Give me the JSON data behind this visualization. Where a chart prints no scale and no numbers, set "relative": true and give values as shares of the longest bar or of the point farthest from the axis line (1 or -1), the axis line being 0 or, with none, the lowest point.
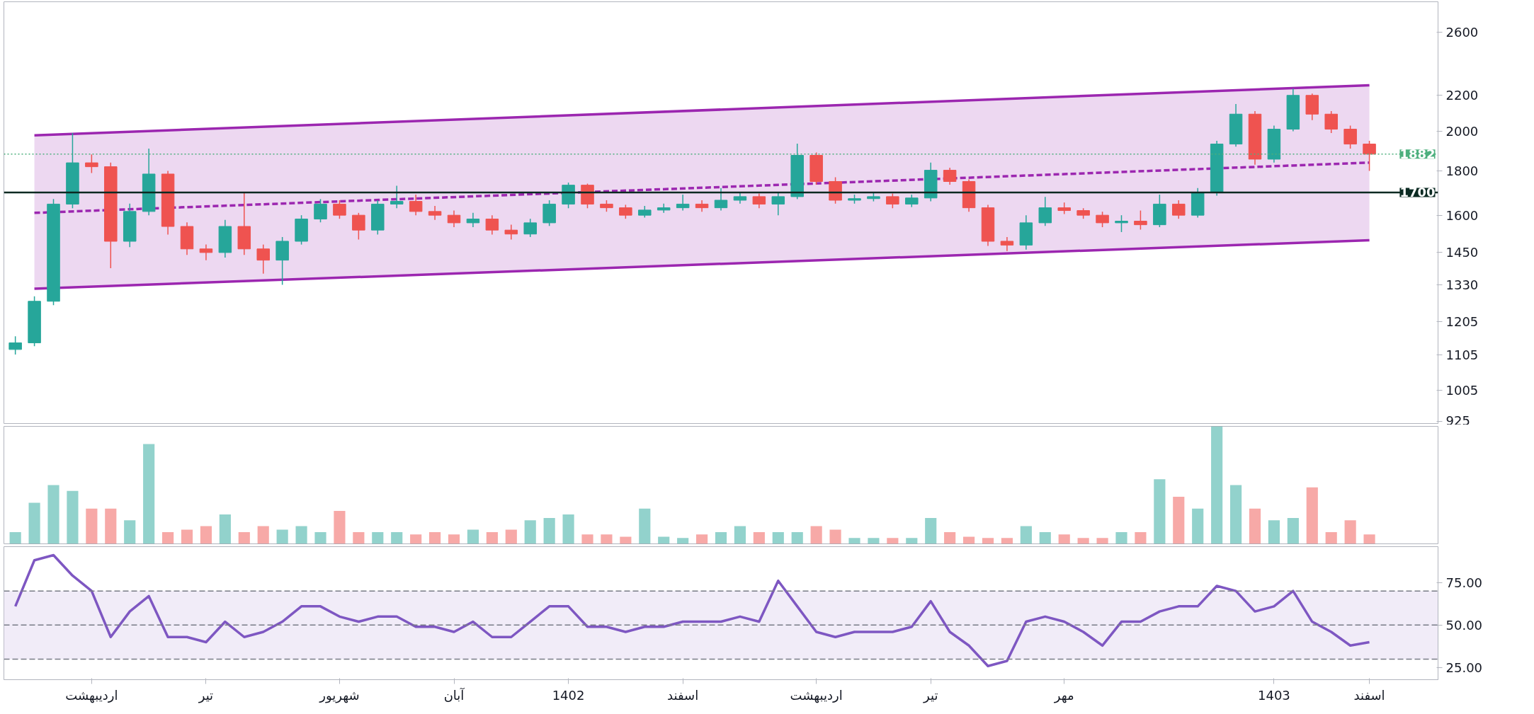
{
  "chart_data": [
    {
      "type": "candlestick",
      "categories": [
        null,
        null,
        null,
        null,
        null,
        null,
        null,
        null,
        null,
        null,
        null,
        null,
        null,
        null,
        null,
        null,
        null,
        null,
        null,
        null,
        null,
        null,
        null,
        null,
        null,
        null,
        null,
        null,
        null,
        null,
        null,
        null,
        null,
        null,
        null,
        null,
        null,
        null,
        null,
        null,
        null,
        null,
        null,
        null,
        null,
        null,
        null,
        null,
        null,
        null,
        null,
        null,
        null,
        null,
        null,
        null,
        null,
        null,
        null,
        null,
        null,
        null,
        null,
        null,
        null,
        null,
        null,
        null,
        null,
        null,
        null,
        null
      ],
      "ohlc": [
        [
          1120,
          1160,
          1105,
          1140
        ],
        [
          1140,
          1290,
          1130,
          1273
        ],
        [
          1273,
          1670,
          1260,
          1648
        ],
        [
          1648,
          1990,
          1630,
          1839
        ],
        [
          1839,
          1880,
          1790,
          1820
        ],
        [
          1820,
          1840,
          1390,
          1493
        ],
        [
          1493,
          1650,
          1470,
          1616
        ],
        [
          1616,
          1910,
          1600,
          1785
        ],
        [
          1785,
          1800,
          1520,
          1553
        ],
        [
          1553,
          1570,
          1440,
          1463
        ],
        [
          1463,
          1480,
          1420,
          1449
        ],
        [
          1449,
          1580,
          1430,
          1553
        ],
        [
          1553,
          1700,
          1440,
          1463
        ],
        [
          1463,
          1480,
          1370,
          1420
        ],
        [
          1420,
          1510,
          1330,
          1493
        ],
        [
          1493,
          1600,
          1480,
          1584
        ],
        [
          1584,
          1670,
          1570,
          1648
        ],
        [
          1648,
          1665,
          1585,
          1600
        ],
        [
          1600,
          1610,
          1500,
          1538
        ],
        [
          1538,
          1665,
          1520,
          1648
        ],
        [
          1648,
          1730,
          1630,
          1660
        ],
        [
          1660,
          1690,
          1600,
          1616
        ],
        [
          1616,
          1640,
          1580,
          1600
        ],
        [
          1600,
          1620,
          1550,
          1568
        ],
        [
          1568,
          1610,
          1550,
          1584
        ],
        [
          1584,
          1600,
          1520,
          1538
        ],
        [
          1538,
          1560,
          1500,
          1522
        ],
        [
          1522,
          1585,
          1510,
          1568
        ],
        [
          1568,
          1665,
          1555,
          1648
        ],
        [
          1648,
          1745,
          1630,
          1733
        ],
        [
          1733,
          1740,
          1630,
          1648
        ],
        [
          1648,
          1665,
          1615,
          1632
        ],
        [
          1632,
          1645,
          1585,
          1600
        ],
        [
          1600,
          1640,
          1590,
          1622
        ],
        [
          1622,
          1650,
          1610,
          1632
        ],
        [
          1632,
          1690,
          1620,
          1648
        ],
        [
          1648,
          1665,
          1615,
          1632
        ],
        [
          1632,
          1720,
          1620,
          1665
        ],
        [
          1665,
          1700,
          1650,
          1681
        ],
        [
          1681,
          1695,
          1630,
          1648
        ],
        [
          1648,
          1700,
          1600,
          1681
        ],
        [
          1681,
          1935,
          1670,
          1876
        ],
        [
          1876,
          1890,
          1735,
          1750
        ],
        [
          1750,
          1770,
          1650,
          1665
        ],
        [
          1665,
          1690,
          1650,
          1672
        ],
        [
          1672,
          1700,
          1660,
          1681
        ],
        [
          1681,
          1695,
          1630,
          1648
        ],
        [
          1648,
          1690,
          1635,
          1675
        ],
        [
          1675,
          1840,
          1660,
          1803
        ],
        [
          1803,
          1815,
          1735,
          1750
        ],
        [
          1750,
          1760,
          1615,
          1632
        ],
        [
          1632,
          1645,
          1475,
          1493
        ],
        [
          1493,
          1510,
          1455,
          1478
        ],
        [
          1478,
          1600,
          1460,
          1568
        ],
        [
          1568,
          1680,
          1555,
          1632
        ],
        [
          1632,
          1655,
          1605,
          1620
        ],
        [
          1620,
          1630,
          1585,
          1600
        ],
        [
          1600,
          1615,
          1550,
          1568
        ],
        [
          1568,
          1600,
          1530,
          1575
        ],
        [
          1575,
          1620,
          1540,
          1560
        ],
        [
          1560,
          1690,
          1550,
          1648
        ],
        [
          1648,
          1665,
          1585,
          1600
        ],
        [
          1600,
          1720,
          1590,
          1698
        ],
        [
          1698,
          1950,
          1685,
          1933
        ],
        [
          1933,
          2150,
          1920,
          2093
        ],
        [
          2093,
          2110,
          1830,
          1857
        ],
        [
          1857,
          2030,
          1840,
          2011
        ],
        [
          2011,
          2240,
          2000,
          2200
        ],
        [
          2200,
          2210,
          2060,
          2093
        ],
        [
          2093,
          2110,
          1990,
          2011
        ],
        [
          2011,
          2030,
          1910,
          1933
        ],
        [
          1933,
          1950,
          1800,
          1882
        ]
      ],
      "colors": [
        "#26a69a",
        "#26a69a",
        "#26a69a",
        "#26a69a",
        "#ef5350",
        "#ef5350",
        "#26a69a",
        "#26a69a",
        "#ef5350",
        "#ef5350",
        "#ef5350",
        "#26a69a",
        "#ef5350",
        "#ef5350",
        "#26a69a",
        "#26a69a",
        "#26a69a",
        "#ef5350",
        "#ef5350",
        "#26a69a",
        "#26a69a",
        "#ef5350",
        "#ef5350",
        "#ef5350",
        "#26a69a",
        "#ef5350",
        "#ef5350",
        "#26a69a",
        "#26a69a",
        "#26a69a",
        "#ef5350",
        "#ef5350",
        "#ef5350",
        "#26a69a",
        "#26a69a",
        "#26a69a",
        "#ef5350",
        "#26a69a",
        "#26a69a",
        "#ef5350",
        "#26a69a",
        "#26a69a",
        "#ef5350",
        "#ef5350",
        "#26a69a",
        "#26a69a",
        "#ef5350",
        "#26a69a",
        "#26a69a",
        "#ef5350",
        "#ef5350",
        "#ef5350",
        "#ef5350",
        "#26a69a",
        "#26a69a",
        "#ef5350",
        "#ef5350",
        "#ef5350",
        "#26a69a",
        "#ef5350",
        "#26a69a",
        "#ef5350",
        "#26a69a",
        "#26a69a",
        "#26a69a",
        "#ef5350",
        "#26a69a",
        "#26a69a",
        "#ef5350",
        "#ef5350",
        "#ef5350",
        "#ef5350"
      ],
      "series": [
        {
          "type": "line",
          "values": [
            null,
            1978,
            null,
            null,
            null,
            null,
            null,
            null,
            null,
            null,
            null,
            null,
            null,
            null,
            null,
            null,
            null,
            null,
            null,
            null,
            null,
            null,
            null,
            null,
            null,
            null,
            null,
            null,
            null,
            null,
            null,
            null,
            null,
            null,
            null,
            null,
            null,
            null,
            null,
            null,
            null,
            null,
            null,
            null,
            null,
            null,
            null,
            null,
            null,
            null,
            null,
            null,
            null,
            null,
            null,
            null,
            null,
            null,
            null,
            null,
            null,
            null,
            null,
            null,
            null,
            null,
            null,
            null,
            null,
            null,
            null,
            2260
          ],
          "color": "#9c27b0"
        },
        {
          "type": "line",
          "values": [
            null,
            1316,
            null,
            null,
            null,
            null,
            null,
            null,
            null,
            null,
            null,
            null,
            null,
            null,
            null,
            null,
            null,
            null,
            null,
            null,
            null,
            null,
            null,
            null,
            null,
            null,
            null,
            null,
            null,
            null,
            null,
            null,
            null,
            null,
            null,
            null,
            null,
            null,
            null,
            null,
            null,
            null,
            null,
            null,
            null,
            null,
            null,
            null,
            null,
            null,
            null,
            null,
            null,
            null,
            null,
            null,
            null,
            null,
            null,
            null,
            null,
            null,
            null,
            null,
            null,
            null,
            null,
            null,
            null,
            null,
            null,
            1497
          ],
          "color": "#9c27b0"
        },
        {
          "type": "line",
          "values": [
            null,
            1610,
            null,
            null,
            null,
            null,
            null,
            null,
            null,
            null,
            null,
            null,
            null,
            null,
            null,
            null,
            null,
            null,
            null,
            null,
            null,
            null,
            null,
            null,
            null,
            null,
            null,
            null,
            null,
            null,
            null,
            null,
            null,
            null,
            null,
            null,
            null,
            null,
            null,
            null,
            null,
            null,
            null,
            null,
            null,
            null,
            null,
            null,
            null,
            null,
            null,
            null,
            null,
            null,
            null,
            null,
            null,
            null,
            null,
            null,
            null,
            null,
            null,
            null,
            null,
            null,
            null,
            null,
            null,
            null,
            null,
            1840
          ],
          "lower": [
            null,
            1316,
            null,
            null,
            null,
            null,
            null,
            null,
            null,
            null,
            null,
            null,
            null,
            null,
            null,
            null,
            null,
            null,
            null,
            null,
            null,
            null,
            null,
            null,
            null,
            null,
            null,
            null,
            null,
            null,
            null,
            null,
            null,
            null,
            null,
            null,
            null,
            null,
            null,
            null,
            null,
            null,
            null,
            null,
            null,
            null,
            null,
            null,
            null,
            null,
            null,
            null,
            null,
            null,
            null,
            null,
            null,
            null,
            null,
            null,
            null,
            null,
            null,
            null,
            null,
            null,
            null,
            null,
            null,
            null,
            null,
            1497
          ],
          "upper": [
            null,
            1978,
            null,
            null,
            null,
            null,
            null,
            null,
            null,
            null,
            null,
            null,
            null,
            null,
            null,
            null,
            null,
            null,
            null,
            null,
            null,
            null,
            null,
            null,
            null,
            null,
            null,
            null,
            null,
            null,
            null,
            null,
            null,
            null,
            null,
            null,
            null,
            null,
            null,
            null,
            null,
            null,
            null,
            null,
            null,
            null,
            null,
            null,
            null,
            null,
            null,
            null,
            null,
            null,
            null,
            null,
            null,
            null,
            null,
            null,
            null,
            null,
            null,
            null,
            null,
            null,
            null,
            null,
            null,
            null,
            null,
            2260
          ],
          "color": "#9c27b0",
          "line_style": "dashed"
        }
      ],
      "ref_lines": [
        {
          "axis": "y",
          "value": 1700,
          "label": "1700",
          "color": "#0b2a22"
        },
        {
          "axis": "y",
          "value": 1882,
          "label": "1882",
          "color": "#4caf7d",
          "line_style": "dotted"
        }
      ],
      "log": true,
      "ylim": [
        920,
        2821
      ],
      "yticks": [
        925,
        1005,
        1105,
        1205,
        1330,
        1450,
        1600,
        1800,
        2000,
        2200,
        2600
      ],
      "tick_labels": "y"
    },
    {
      "type": "bar",
      "relative": true,
      "categories": [
        null,
        null,
        null,
        null,
        null,
        null,
        null,
        null,
        null,
        null,
        null,
        null,
        null,
        null,
        null,
        null,
        null,
        null,
        null,
        null,
        null,
        null,
        null,
        null,
        null,
        null,
        null,
        null,
        null,
        null,
        null,
        null,
        null,
        null,
        null,
        null,
        null,
        null,
        null,
        null,
        null,
        null,
        null,
        null,
        null,
        null,
        null,
        null,
        null,
        null,
        null,
        null,
        null,
        null,
        null,
        null,
        null,
        null,
        null,
        null,
        null,
        null,
        null,
        null,
        null,
        null,
        null,
        null,
        null,
        null,
        null,
        null
      ],
      "values": [
        0.1,
        0.35,
        0.5,
        0.45,
        0.3,
        0.3,
        0.2,
        0.85,
        0.1,
        0.12,
        0.15,
        0.25,
        0.1,
        0.15,
        0.12,
        0.15,
        0.1,
        0.28,
        0.1,
        0.1,
        0.1,
        0.08,
        0.1,
        0.08,
        0.12,
        0.1,
        0.12,
        0.2,
        0.22,
        0.25,
        0.08,
        0.08,
        0.06,
        0.3,
        0.06,
        0.05,
        0.08,
        0.1,
        0.15,
        0.1,
        0.1,
        0.1,
        0.15,
        0.12,
        0.05,
        0.05,
        0.05,
        0.05,
        0.22,
        0.1,
        0.06,
        0.05,
        0.05,
        0.15,
        0.1,
        0.08,
        0.05,
        0.05,
        0.1,
        0.1,
        0.55,
        0.4,
        0.3,
        1.0,
        0.5,
        0.3,
        0.2,
        0.22,
        0.48,
        0.1,
        0.2,
        0.08
      ],
      "colors": [
        "#26a69a",
        "#26a69a",
        "#26a69a",
        "#26a69a",
        "#ef5350",
        "#ef5350",
        "#26a69a",
        "#26a69a",
        "#ef5350",
        "#ef5350",
        "#ef5350",
        "#26a69a",
        "#ef5350",
        "#ef5350",
        "#26a69a",
        "#26a69a",
        "#26a69a",
        "#ef5350",
        "#ef5350",
        "#26a69a",
        "#26a69a",
        "#ef5350",
        "#ef5350",
        "#ef5350",
        "#26a69a",
        "#ef5350",
        "#ef5350",
        "#26a69a",
        "#26a69a",
        "#26a69a",
        "#ef5350",
        "#ef5350",
        "#ef5350",
        "#26a69a",
        "#26a69a",
        "#26a69a",
        "#ef5350",
        "#26a69a",
        "#26a69a",
        "#ef5350",
        "#26a69a",
        "#26a69a",
        "#ef5350",
        "#ef5350",
        "#26a69a",
        "#26a69a",
        "#ef5350",
        "#26a69a",
        "#26a69a",
        "#ef5350",
        "#ef5350",
        "#ef5350",
        "#ef5350",
        "#26a69a",
        "#26a69a",
        "#ef5350",
        "#ef5350",
        "#ef5350",
        "#26a69a",
        "#ef5350",
        "#26a69a",
        "#ef5350",
        "#26a69a",
        "#26a69a",
        "#26a69a",
        "#ef5350",
        "#26a69a",
        "#26a69a",
        "#ef5350",
        "#ef5350",
        "#ef5350",
        "#ef5350"
      ],
      "tick_labels": false
    },
    {
      "type": "line",
      "categories": [
        null,
        null,
        null,
        null,
        "اردیبهشت",
        null,
        null,
        null,
        null,
        null,
        "تیر",
        null,
        null,
        null,
        null,
        null,
        null,
        "شهریور",
        null,
        null,
        null,
        null,
        null,
        "آبان",
        null,
        null,
        null,
        null,
        null,
        "1402",
        null,
        null,
        null,
        null,
        null,
        "اسفند",
        null,
        null,
        null,
        null,
        null,
        null,
        "اردیبهشت",
        null,
        null,
        null,
        null,
        null,
        "تیر",
        null,
        null,
        null,
        null,
        null,
        null,
        "مهر",
        null,
        null,
        null,
        null,
        null,
        null,
        null,
        null,
        null,
        null,
        "1403",
        null,
        null,
        null,
        null,
        "اسفند"
      ],
      "series": [
        {
          "color": "#7e57c2",
          "values": [
            61,
            88,
            91,
            79,
            70,
            43,
            58,
            67,
            43,
            43,
            40,
            52,
            43,
            46,
            52,
            61,
            61,
            55,
            52,
            55,
            55,
            49,
            49,
            46,
            52,
            43,
            43,
            52,
            61,
            61,
            49,
            49,
            46,
            49,
            49,
            52,
            52,
            52,
            55,
            52,
            76,
            61,
            46,
            43,
            46,
            46,
            46,
            49,
            64,
            46,
            38,
            26,
            29,
            52,
            55,
            52,
            46,
            38,
            52,
            52,
            58,
            61,
            61,
            73,
            70,
            58,
            61,
            70,
            52,
            46,
            38,
            40
          ]
        }
      ],
      "ref_lines": [
        {
          "axis": "y",
          "value": 70,
          "color": "#787b86",
          "line_style": "dashed"
        },
        {
          "axis": "y",
          "value": 50,
          "color": "#787b86",
          "line_style": "dashed"
        },
        {
          "axis": "y",
          "value": 30,
          "color": "#787b86",
          "line_style": "dashed"
        }
      ],
      "bands": [
        {
          "axis": "y",
          "from": 30,
          "to": 70,
          "color": "#ede7f6"
        }
      ],
      "ylim": [
        18,
        96
      ],
      "yticks": [
        {
          "value": 25,
          "label": "25.00"
        },
        {
          "value": 50,
          "label": "50.00"
        },
        {
          "value": 75,
          "label": "75.00"
        }
      ]
    }
  ]
}
